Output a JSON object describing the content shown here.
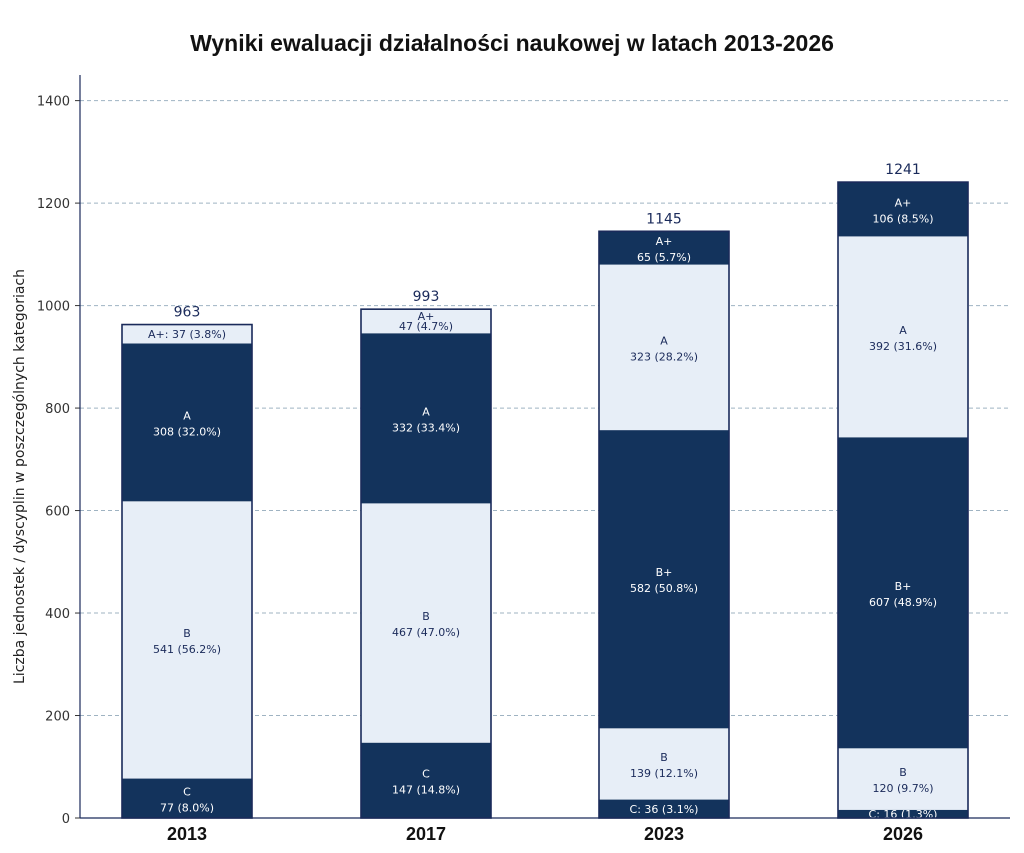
{
  "chart_data": {
    "type": "bar",
    "stacked": true,
    "title": "Wyniki ewaluacji działalności naukowej w latach 2013-2026",
    "ylabel": "Liczba jednostek / dyscyplin w poszczególnych kategoriach",
    "xlabel": "",
    "ylim": [
      0,
      1450
    ],
    "yticks": [
      "0",
      "200",
      "400",
      "600",
      "800",
      "1000",
      "1200",
      "1400"
    ],
    "grid": true,
    "colors": {
      "dark": "#13335c",
      "light": "#e7eef7",
      "border": "#1a2a5a"
    },
    "categories": [
      "2013",
      "2017",
      "2023",
      "2026"
    ],
    "totals": [
      "963",
      "993",
      "1145",
      "1241"
    ],
    "bars": [
      {
        "segments": [
          {
            "value": 77,
            "name": "C",
            "label": "77 (8.0%)",
            "tone": "dark"
          },
          {
            "value": 541,
            "name": "B",
            "label": "541 (56.2%)",
            "tone": "light"
          },
          {
            "value": 308,
            "name": "A",
            "label": "308 (32.0%)",
            "tone": "dark"
          },
          {
            "value": 37,
            "name": "A+",
            "label": "37 (3.8%)",
            "tone": "light",
            "inline": true
          }
        ]
      },
      {
        "segments": [
          {
            "value": 147,
            "name": "C",
            "label": "147 (14.8%)",
            "tone": "dark"
          },
          {
            "value": 467,
            "name": "B",
            "label": "467 (47.0%)",
            "tone": "light"
          },
          {
            "value": 332,
            "name": "A",
            "label": "332 (33.4%)",
            "tone": "dark"
          },
          {
            "value": 47,
            "name": "A+",
            "label": "47 (4.7%)",
            "tone": "light"
          }
        ]
      },
      {
        "segments": [
          {
            "value": 36,
            "name": "C",
            "label": "36 (3.1%)",
            "tone": "dark",
            "inline": true
          },
          {
            "value": 139,
            "name": "B",
            "label": "139 (12.1%)",
            "tone": "light"
          },
          {
            "value": 582,
            "name": "B+",
            "label": "582 (50.8%)",
            "tone": "dark"
          },
          {
            "value": 323,
            "name": "A",
            "label": "323 (28.2%)",
            "tone": "light"
          },
          {
            "value": 65,
            "name": "A+",
            "label": "65 (5.7%)",
            "tone": "dark"
          }
        ]
      },
      {
        "segments": [
          {
            "value": 16,
            "name": "C",
            "label": "16 (1.3%)",
            "tone": "dark",
            "inline": true
          },
          {
            "value": 120,
            "name": "B",
            "label": "120 (9.7%)",
            "tone": "light"
          },
          {
            "value": 607,
            "name": "B+",
            "label": "607 (48.9%)",
            "tone": "dark"
          },
          {
            "value": 392,
            "name": "A",
            "label": "392 (31.6%)",
            "tone": "light"
          },
          {
            "value": 106,
            "name": "A+",
            "label": "106 (8.5%)",
            "tone": "dark"
          }
        ]
      }
    ]
  }
}
